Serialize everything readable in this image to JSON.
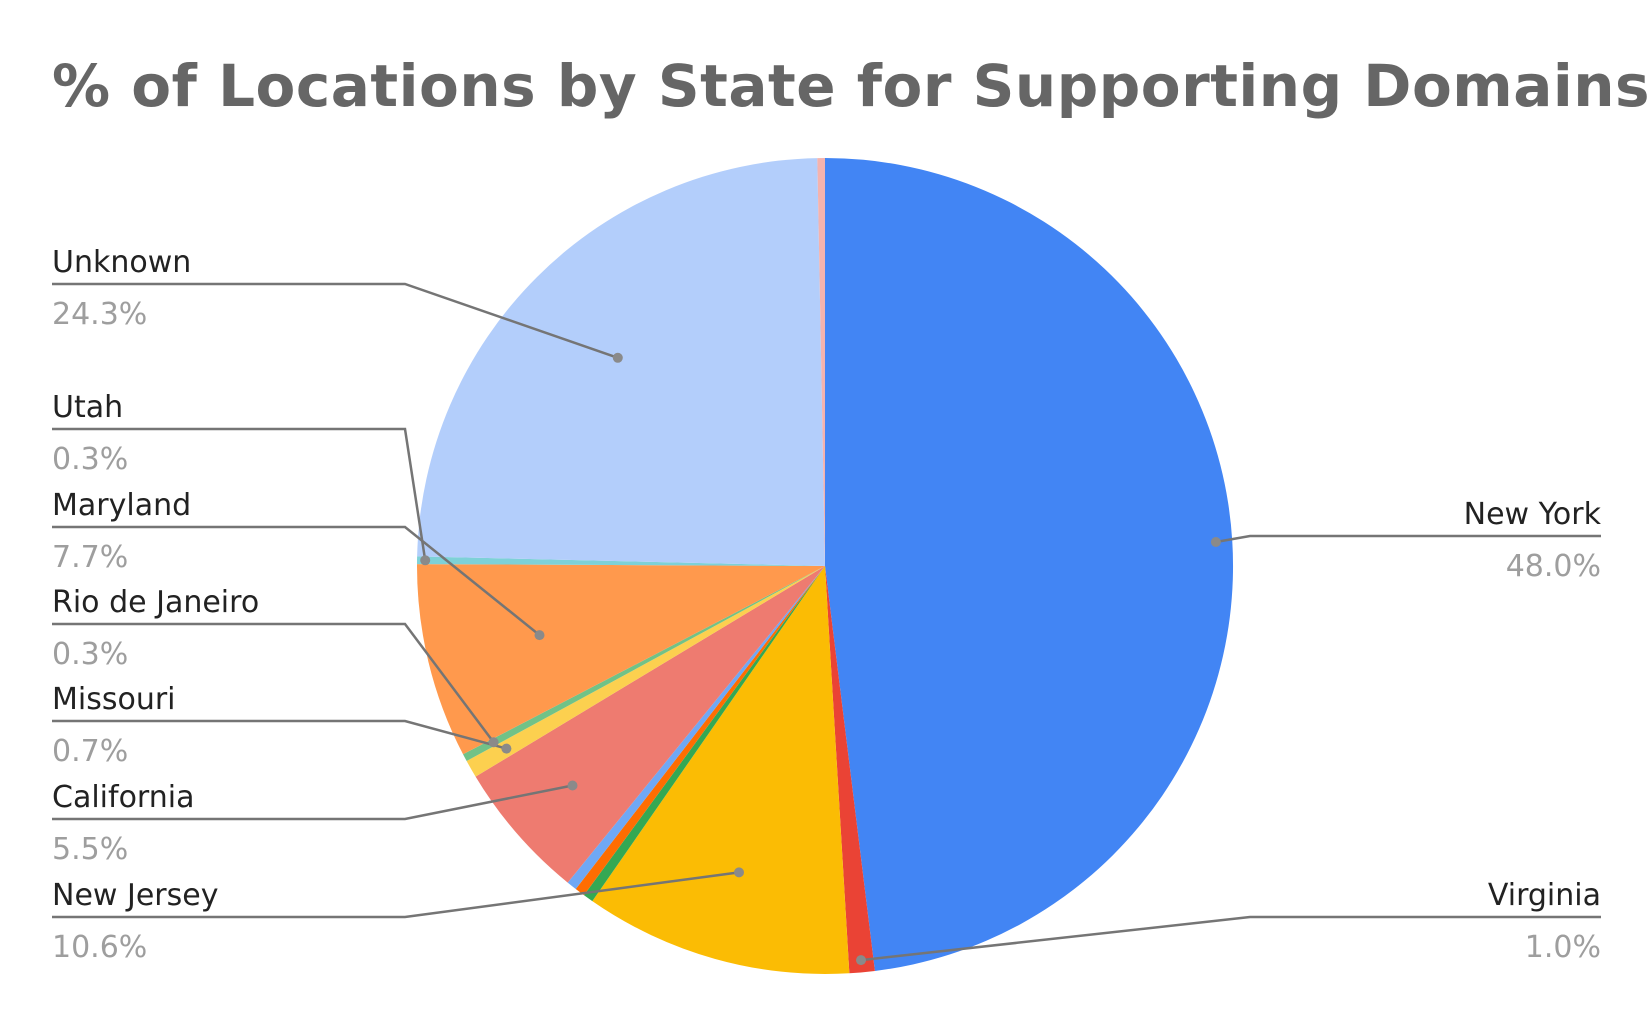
{
  "chart_data": {
    "type": "pie",
    "title": "% of Locations by State for Supporting Domains",
    "slices": [
      {
        "label": "New York",
        "value": 48.0,
        "display": "48.0%",
        "color": "#4285f4",
        "labeled": true
      },
      {
        "label": "Virginia",
        "value": 1.0,
        "display": "1.0%",
        "color": "#ea4335",
        "labeled": true
      },
      {
        "label": "New Jersey",
        "value": 10.6,
        "display": "10.6%",
        "color": "#fbbc04",
        "labeled": true
      },
      {
        "label": "",
        "value": 0.4,
        "display": "",
        "color": "#34a853",
        "labeled": false
      },
      {
        "label": "",
        "value": 0.4,
        "display": "",
        "color": "#ff6d01",
        "labeled": false
      },
      {
        "label": "",
        "value": 0.4,
        "display": "",
        "color": "#6fa8f5",
        "labeled": false
      },
      {
        "label": "California",
        "value": 5.5,
        "display": "5.5%",
        "color": "#ee7b70",
        "labeled": true
      },
      {
        "label": "Missouri",
        "value": 0.7,
        "display": "0.7%",
        "color": "#fcd04f",
        "labeled": true
      },
      {
        "label": "Rio de Janeiro",
        "value": 0.3,
        "display": "0.3%",
        "color": "#71c287",
        "labeled": true
      },
      {
        "label": "Maryland",
        "value": 7.7,
        "display": "7.7%",
        "color": "#ff994d",
        "labeled": true
      },
      {
        "label": "Utah",
        "value": 0.3,
        "display": "0.3%",
        "color": "#7ed1d7",
        "labeled": true
      },
      {
        "label": "Unknown",
        "value": 24.3,
        "display": "24.3%",
        "color": "#b3cefb",
        "labeled": true
      },
      {
        "label": "",
        "value": 0.3,
        "display": "",
        "color": "#f4b3ae",
        "labeled": false
      }
    ],
    "start_angle": "12 o'clock",
    "direction": "clockwise",
    "legend": "callout labels"
  }
}
